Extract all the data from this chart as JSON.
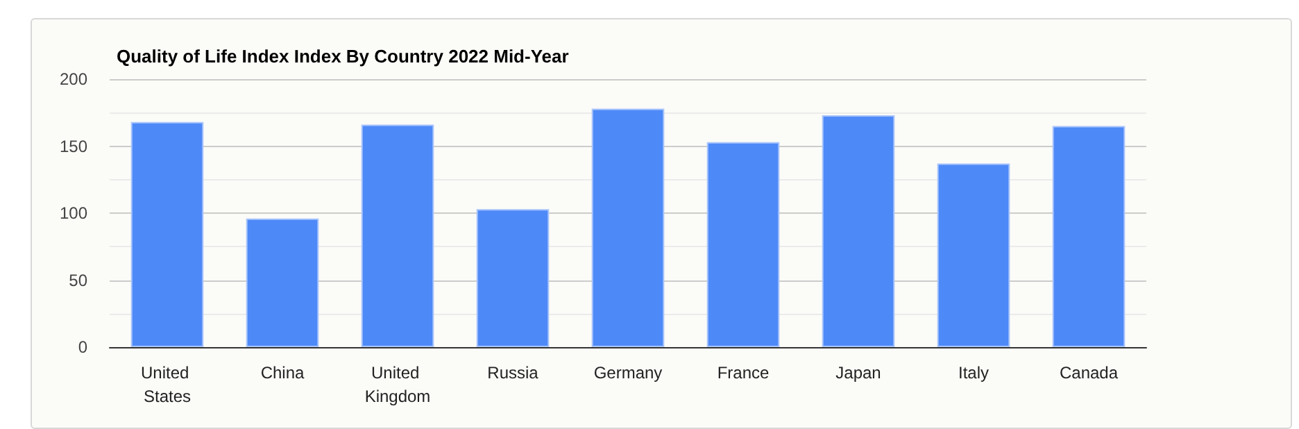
{
  "chart_data": {
    "type": "bar",
    "title": "Quality of Life Index Index By Country 2022 Mid-Year",
    "categories": [
      "United States",
      "China",
      "United Kingdom",
      "Russia",
      "Germany",
      "France",
      "Japan",
      "Italy",
      "Canada"
    ],
    "values": [
      168,
      96,
      166,
      103,
      178,
      153,
      173,
      137,
      165
    ],
    "color": "#4e89f8",
    "ylim": [
      0,
      200
    ],
    "yticks": [
      0,
      50,
      100,
      150,
      200
    ],
    "grid": true
  }
}
